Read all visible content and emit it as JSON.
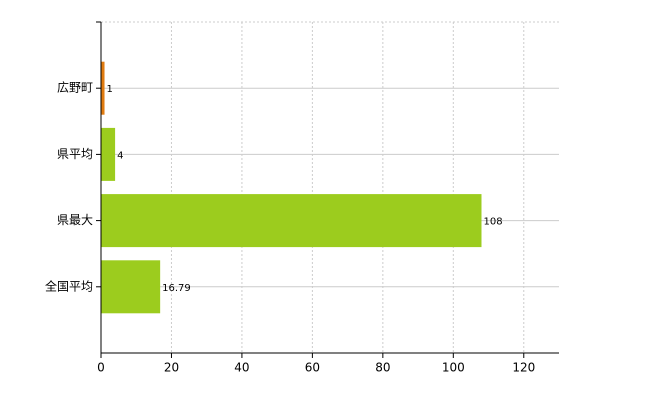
{
  "chart_data": {
    "type": "hbar",
    "categories": [
      "広野町",
      "県平均",
      "県最大",
      "全国平均"
    ],
    "values": [
      1,
      4,
      108,
      16.79
    ],
    "colors": [
      "#e07b10",
      "#9ccc1e",
      "#9ccc1e",
      "#9ccc1e"
    ],
    "xlim": [
      0,
      130
    ],
    "xticks": [
      0,
      20,
      40,
      60,
      80,
      100,
      120
    ],
    "grid": true
  }
}
